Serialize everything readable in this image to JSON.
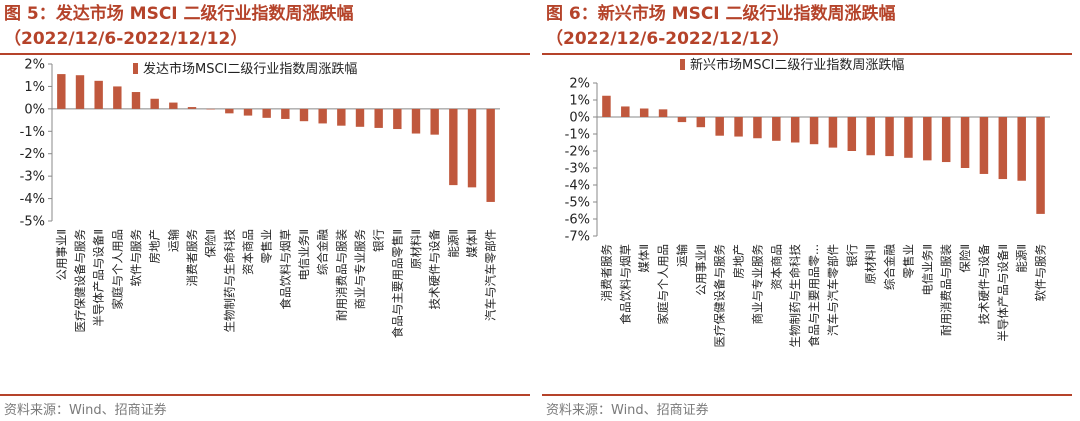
{
  "colors": {
    "accent": "#b5432a",
    "bar": "#c0583d",
    "axis": "#888888"
  },
  "source": "资料来源：Wind、招商证券",
  "chart_data": [
    {
      "type": "bar",
      "title": "图 5：发达市场 MSCI 二级行业指数周涨跌幅",
      "subtitle": "（2022/12/6-2022/12/12）",
      "legend": "发达市场MSCI二级行业指数周涨跌幅",
      "legend_position": "top-right",
      "ylim": [
        -5,
        2
      ],
      "yticks": [
        2,
        1,
        0,
        -1,
        -2,
        -3,
        -4,
        -5
      ],
      "grid": false,
      "categories": [
        "公用事业Ⅱ",
        "医疗保健设备与服务",
        "半导体产品与设备Ⅱ",
        "家庭与个人用品",
        "软件与服务",
        "房地产",
        "运输",
        "消费者服务",
        "保险Ⅱ",
        "生物制药与生命科技",
        "资本商品",
        "零售业",
        "食品饮料与烟草",
        "电信业务Ⅱ",
        "综合金融",
        "耐用消费品与服装",
        "商业与专业服务",
        "银行",
        "食品与主要用品零售Ⅱ",
        "原材料Ⅱ",
        "技术硬件与设备",
        "能源Ⅱ",
        "媒体Ⅱ",
        "汽车与汽车零部件"
      ],
      "series": [
        {
          "name": "发达市场MSCI二级行业指数周涨跌幅",
          "values": [
            1.55,
            1.5,
            1.25,
            1.0,
            0.75,
            0.45,
            0.28,
            0.08,
            -0.02,
            -0.2,
            -0.3,
            -0.4,
            -0.45,
            -0.55,
            -0.65,
            -0.75,
            -0.8,
            -0.85,
            -0.9,
            -1.1,
            -1.15,
            -3.4,
            -3.5,
            -4.15
          ]
        }
      ]
    },
    {
      "type": "bar",
      "title": "图 6：新兴市场 MSCI 二级行业指数周涨跌幅",
      "subtitle": "（2022/12/6-2022/12/12）",
      "legend": "新兴市场MSCI二级行业指数周涨跌幅",
      "legend_position": "top-right",
      "ylim": [
        -7,
        2
      ],
      "yticks": [
        2,
        1,
        0,
        -1,
        -2,
        -3,
        -4,
        -5,
        -6,
        -7
      ],
      "grid": false,
      "categories": [
        "消费者服务",
        "食品饮料与烟草",
        "媒体Ⅱ",
        "家庭与个人用品",
        "运输",
        "公用事业Ⅱ",
        "医疗保健设备与服务",
        "房地产",
        "商业与专业服务",
        "资本商品",
        "生物制药与生命科技",
        "食品与主要用品零...",
        "汽车与汽车零部件",
        "银行",
        "原材料Ⅱ",
        "综合金融",
        "零售业",
        "电信业务Ⅱ",
        "耐用消费品与服装",
        "保险Ⅱ",
        "技术硬件与设备",
        "半导体产品与设备Ⅱ",
        "能源Ⅱ",
        "软件与服务"
      ],
      "series": [
        {
          "name": "新兴市场MSCI二级行业指数周涨跌幅",
          "values": [
            1.25,
            0.62,
            0.5,
            0.45,
            -0.3,
            -0.6,
            -1.1,
            -1.15,
            -1.25,
            -1.4,
            -1.5,
            -1.6,
            -1.8,
            -2.0,
            -2.25,
            -2.3,
            -2.4,
            -2.55,
            -2.65,
            -3.0,
            -3.35,
            -3.65,
            -3.75,
            -5.7
          ]
        }
      ]
    }
  ]
}
